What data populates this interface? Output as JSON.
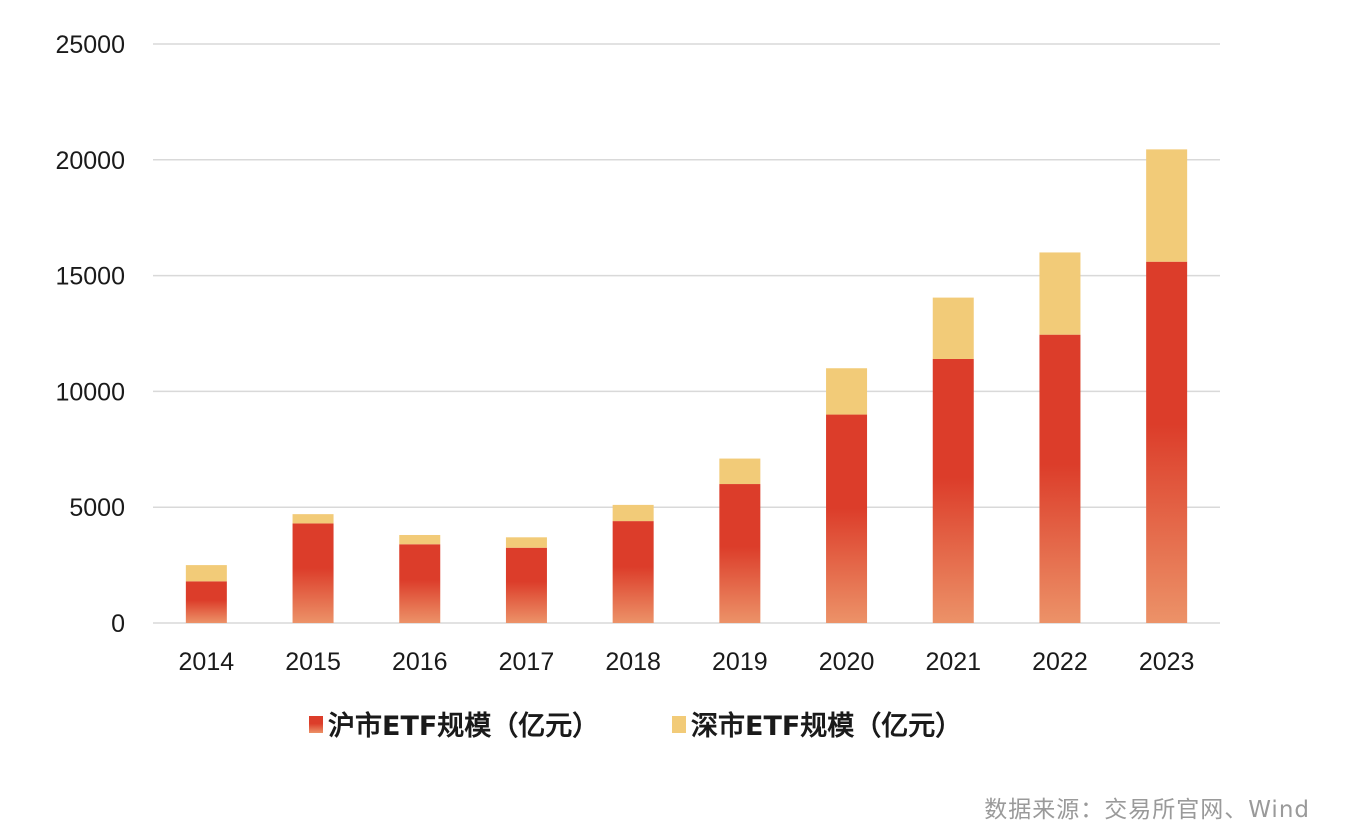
{
  "chart_data": {
    "type": "bar",
    "stacked": true,
    "categories": [
      "2014",
      "2015",
      "2016",
      "2017",
      "2018",
      "2019",
      "2020",
      "2021",
      "2022",
      "2023"
    ],
    "series": [
      {
        "name": "沪市ETF规模（亿元）",
        "values": [
          1800,
          4300,
          3400,
          3250,
          4400,
          6000,
          9000,
          11400,
          12450,
          15600
        ]
      },
      {
        "name": "深市ETF规模（亿元）",
        "values": [
          700,
          400,
          400,
          450,
          700,
          1100,
          2000,
          2650,
          3550,
          4850
        ]
      }
    ],
    "ylim": [
      0,
      25000
    ],
    "yticks": [
      0,
      5000,
      10000,
      15000,
      20000,
      25000
    ],
    "grid": true,
    "legend_position": "bottom",
    "colors": {
      "sh_top": "#DC3D2A",
      "sh_bottom": "#EC9268",
      "sz": "#F2CB78",
      "grid": "#D9D9D9"
    }
  },
  "source_text": "数据来源：交易所官网、Wind"
}
